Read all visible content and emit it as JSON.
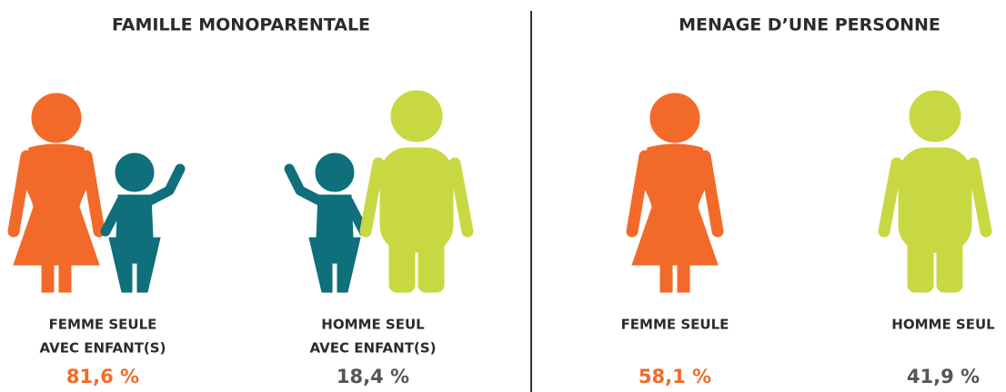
{
  "sections": [
    {
      "title": "FAMILLE MONOPARENTALE",
      "items": [
        {
          "label": [
            "FEMME SEULE",
            "AVEC ENFANT(S)"
          ],
          "value": "81,6 %"
        },
        {
          "label": [
            "HOMME SEUL",
            "AVEC ENFANT(S)"
          ],
          "value": "18,4 %"
        }
      ]
    },
    {
      "title": "MENAGE D’UNE PERSONNE",
      "items": [
        {
          "label": [
            "FEMME SEULE"
          ],
          "value": "58,1 %"
        },
        {
          "label": [
            "HOMME SEUL"
          ],
          "value": "41,9 %"
        }
      ]
    }
  ]
}
